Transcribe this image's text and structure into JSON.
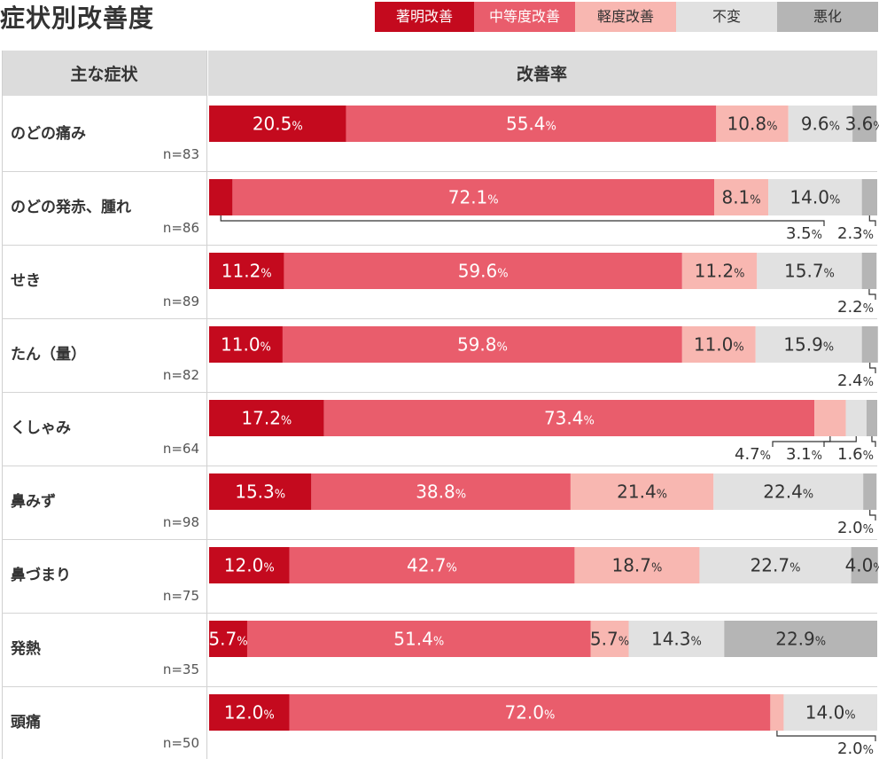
{
  "title": "症状別改善度",
  "header": {
    "symptom": "主な症状",
    "rate": "改善率"
  },
  "legend": [
    {
      "label": "著明改善",
      "color": "#c40a1e",
      "text_color": "#ffffff"
    },
    {
      "label": "中等度改善",
      "color": "#e95d6c",
      "text_color": "#ffffff"
    },
    {
      "label": "軽度改善",
      "color": "#f8b7b1",
      "text_color": "#333333"
    },
    {
      "label": "不変",
      "color": "#e1e1e1",
      "text_color": "#333333"
    },
    {
      "label": "悪化",
      "color": "#b5b5b5",
      "text_color": "#333333"
    }
  ],
  "chart_data": {
    "type": "bar",
    "orientation": "horizontal",
    "stacked": true,
    "unit": "%",
    "series_names": [
      "著明改善",
      "中等度改善",
      "軽度改善",
      "不変",
      "悪化"
    ],
    "rows": [
      {
        "label": "のどの痛み",
        "n": "n=83",
        "values": [
          20.5,
          55.4,
          10.8,
          9.6,
          3.6
        ]
      },
      {
        "label": "のどの発赤、腫れ",
        "n": "n=86",
        "values": [
          3.5,
          72.1,
          8.1,
          14.0,
          2.3
        ]
      },
      {
        "label": "せき",
        "n": "n=89",
        "values": [
          11.2,
          59.6,
          11.2,
          15.7,
          2.2
        ]
      },
      {
        "label": "たん（量）",
        "n": "n=82",
        "values": [
          11.0,
          59.8,
          11.0,
          15.9,
          2.4
        ]
      },
      {
        "label": "くしゃみ",
        "n": "n=64",
        "values": [
          17.2,
          73.4,
          4.7,
          3.1,
          1.6
        ]
      },
      {
        "label": "鼻みず",
        "n": "n=98",
        "values": [
          15.3,
          38.8,
          21.4,
          22.4,
          2.0
        ]
      },
      {
        "label": "鼻づまり",
        "n": "n=75",
        "values": [
          12.0,
          42.7,
          18.7,
          22.7,
          4.0
        ]
      },
      {
        "label": "発熱",
        "n": "n=35",
        "values": [
          5.7,
          51.4,
          5.7,
          14.3,
          22.9
        ]
      },
      {
        "label": "頭痛",
        "n": "n=50",
        "values": [
          12.0,
          72.0,
          2.0,
          14.0,
          0
        ]
      }
    ],
    "xlim": [
      0,
      100
    ]
  }
}
